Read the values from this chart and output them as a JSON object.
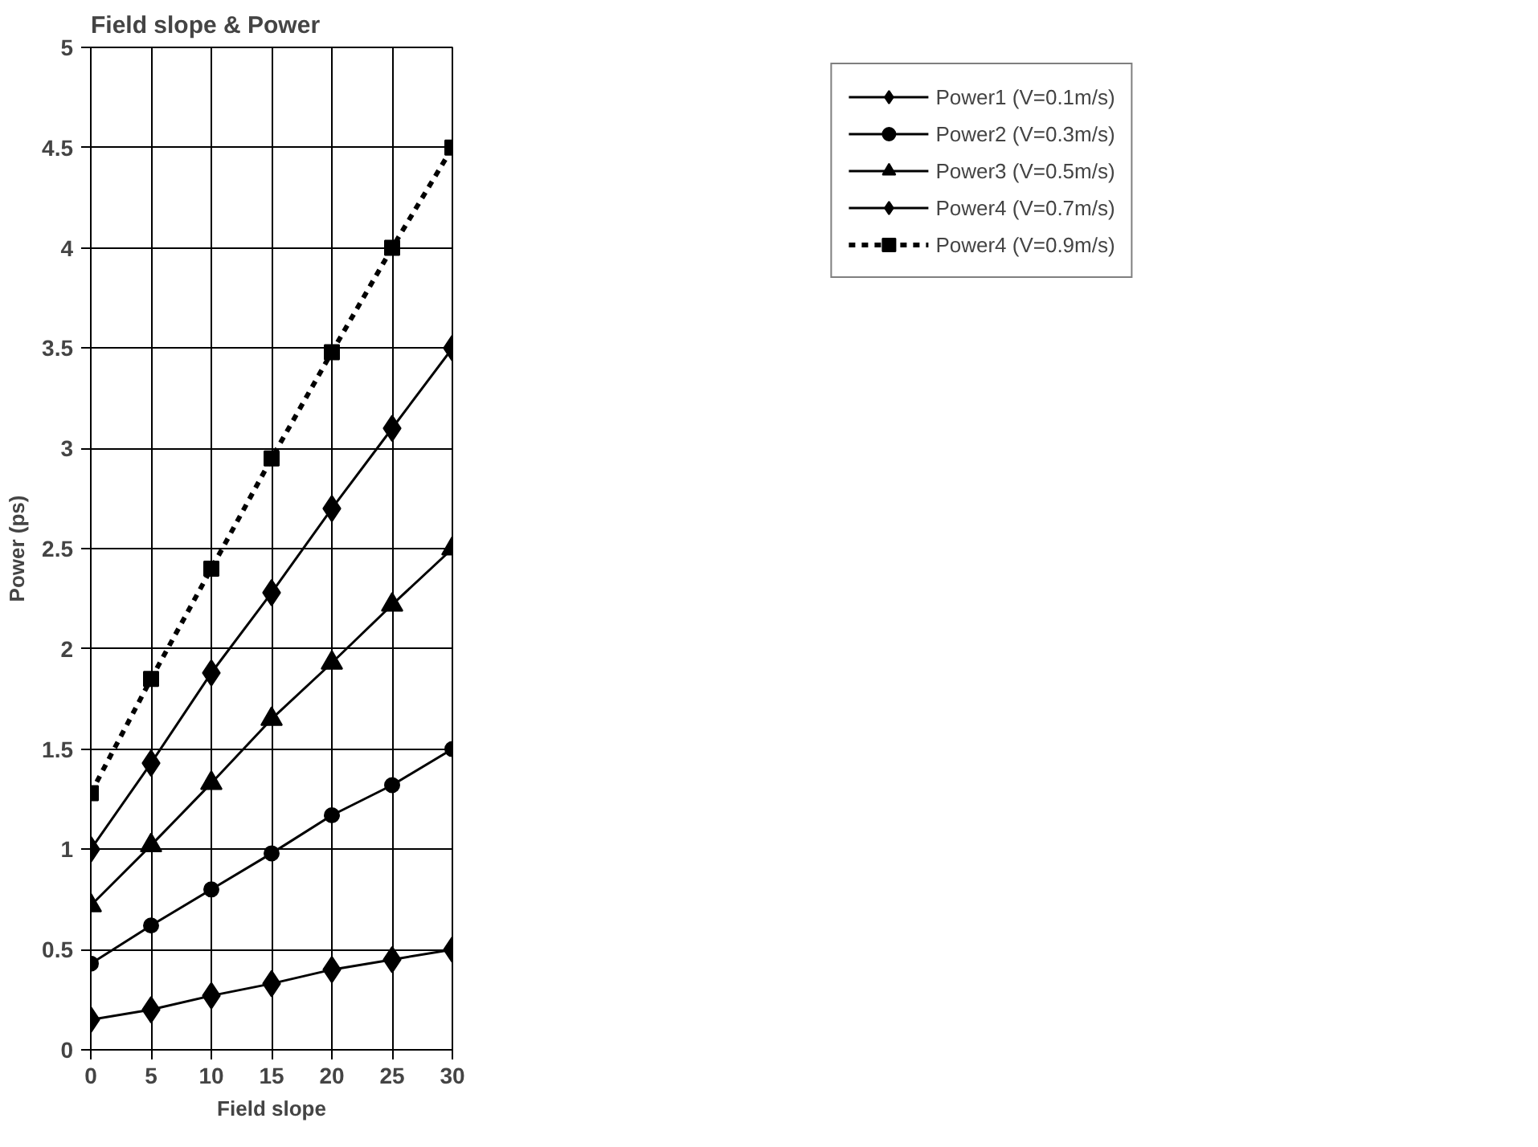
{
  "chart_data": {
    "type": "line",
    "title": "Field slope & Power",
    "xlabel": "Field slope",
    "ylabel": "Power (ps)",
    "x": [
      0,
      5,
      10,
      15,
      20,
      25,
      30
    ],
    "xlim": [
      0,
      30
    ],
    "xticks": [
      0,
      5,
      10,
      15,
      20,
      25,
      30
    ],
    "ylim": [
      0,
      5
    ],
    "yticks": [
      0,
      0.5,
      1,
      1.5,
      2,
      2.5,
      3,
      3.5,
      4,
      4.5,
      5
    ],
    "grid": true,
    "legend": "top right",
    "line_style": "solid",
    "series": [
      {
        "name": "Power1 (V=0.1m/s)",
        "color": "#000000",
        "marker": "diamond",
        "values": [
          0.15,
          0.2,
          0.27,
          0.33,
          0.4,
          0.45,
          0.5
        ]
      },
      {
        "name": "Power2 (V=0.3m/s)",
        "color": "#000000",
        "marker": "circle",
        "values": [
          0.43,
          0.62,
          0.8,
          0.98,
          1.17,
          1.32,
          1.5
        ]
      },
      {
        "name": "Power3 (V=0.5m/s)",
        "color": "#000000",
        "marker": "triangle",
        "values": [
          0.72,
          1.02,
          1.33,
          1.65,
          1.93,
          2.22,
          2.5
        ]
      },
      {
        "name": "Power4 (V=0.7m/s)",
        "color": "#000000",
        "marker": "diamond",
        "values": [
          1.0,
          1.43,
          1.88,
          2.28,
          2.7,
          3.1,
          3.5
        ]
      },
      {
        "name": "Power4 (V=0.9m/s)",
        "color": "#000000",
        "marker": "square",
        "line_style": "dotted",
        "values": [
          1.28,
          1.85,
          2.4,
          2.95,
          3.48,
          4.0,
          4.5
        ]
      }
    ]
  }
}
